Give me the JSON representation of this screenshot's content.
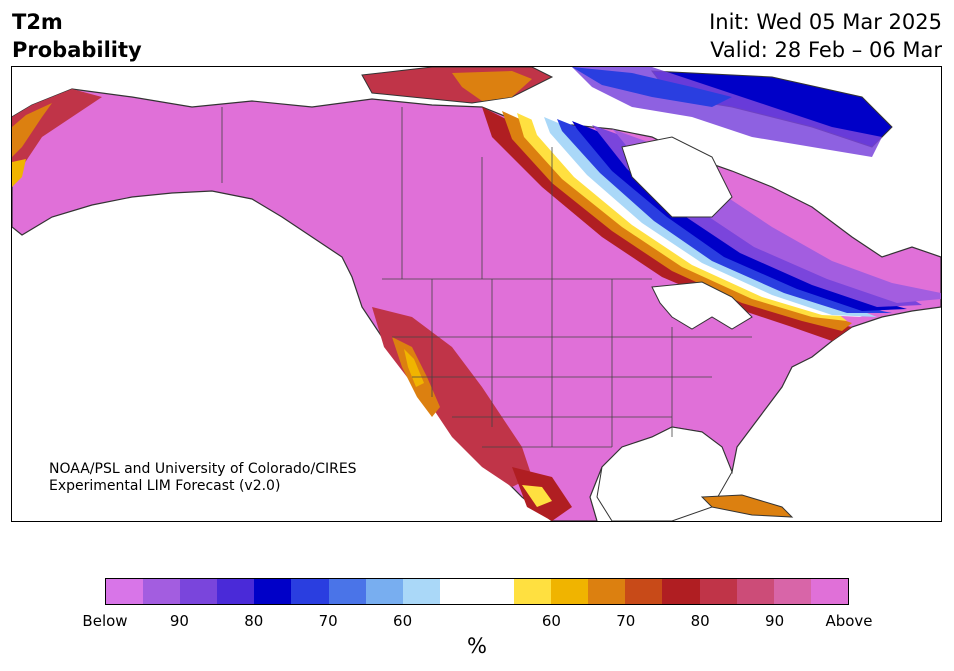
{
  "header": {
    "variable": "T2m",
    "product": "Probability",
    "init": "Init: Wed 05 Mar 2025",
    "valid": "Valid: 28 Feb – 06 Mar"
  },
  "credit": {
    "line1": "NOAA/PSL and University of Colorado/CIRES",
    "line2": "Experimental LIM Forecast (v2.0)"
  },
  "colorbar": {
    "unit": "%",
    "colors": [
      "#d875e8",
      "#a35de0",
      "#7a45dc",
      "#4a2ad8",
      "#0000c8",
      "#2a3ee0",
      "#4a74e8",
      "#78aef0",
      "#aad8f8",
      "#ffffff",
      "#ffffff",
      "#ffe040",
      "#f0b400",
      "#dc8010",
      "#c84a18",
      "#b01e22",
      "#c03448",
      "#cc4c78",
      "#d865a8",
      "#e070d8"
    ],
    "tick_labels": [
      "Below",
      "90",
      "80",
      "70",
      "60",
      "60",
      "70",
      "80",
      "90",
      "Above"
    ]
  },
  "map": {
    "region": "North America",
    "colors": {
      "above_high": "#e070d8",
      "above_mid": "#d865a8",
      "above_low": "#c03448",
      "warm_red": "#b01e22",
      "orange": "#dc8010",
      "yellow": "#ffe040",
      "light_blue": "#aad8f8",
      "blue": "#2a3ee0",
      "deep_blue": "#0000c8",
      "violet": "#7a45dc",
      "below": "#a35de0",
      "ocean": "#ffffff",
      "coast": "#333333"
    }
  }
}
